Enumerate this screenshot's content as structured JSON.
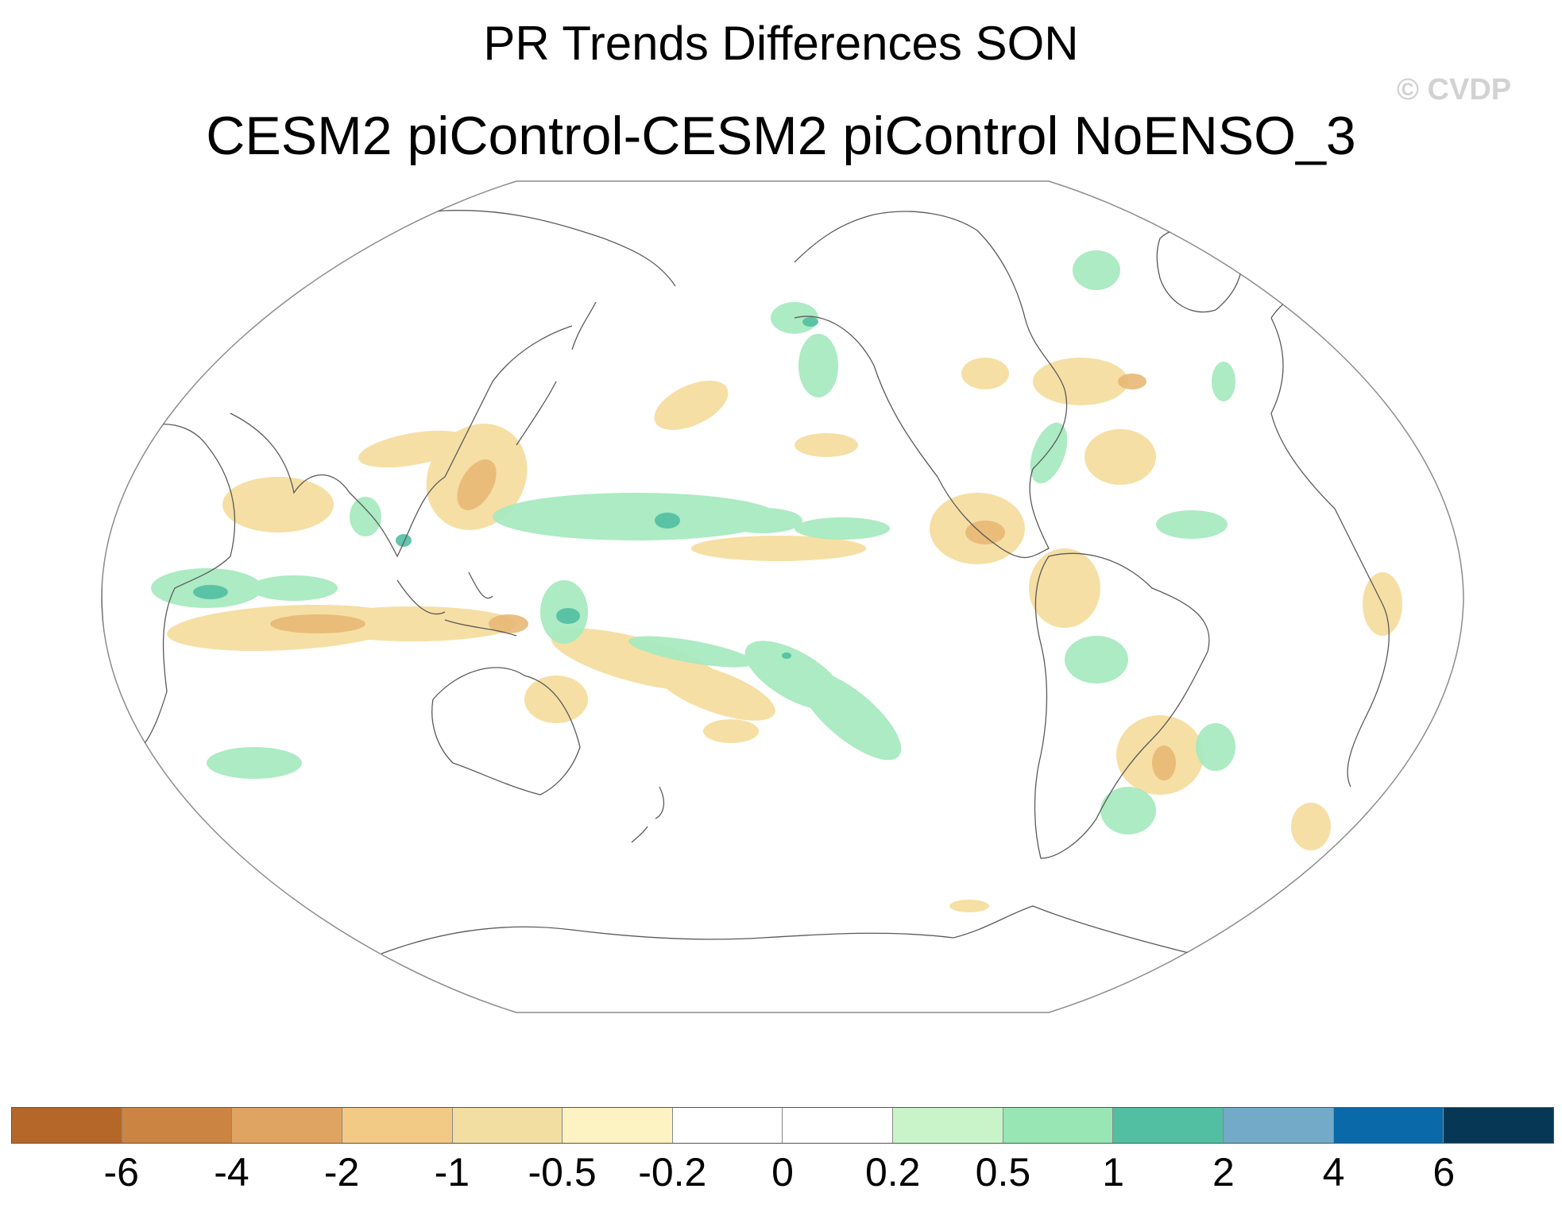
{
  "title": "PR Trends Differences SON",
  "subtitle": "CESM2 piControl-CESM2 piControl NoENSO_3",
  "watermark": "© CVDP",
  "colorbar": {
    "colors": [
      "#b5672a",
      "#cc8442",
      "#dfa462",
      "#f3c986",
      "#f3dea1",
      "#fdf2c1",
      "#ffffff",
      "#ffffff",
      "#c9f4c9",
      "#99e6b5",
      "#52bfa2",
      "#73aac8",
      "#0a69a8",
      "#063755"
    ],
    "labels": [
      "-6",
      "-4",
      "-2",
      "-1",
      "-0.5",
      "-0.2",
      "0",
      "0.2",
      "0.5",
      "1",
      "2",
      "4",
      "6"
    ]
  },
  "legend_colors": {
    "negative": "#f3d690",
    "positive": "#a8eac0",
    "strong_positive": "#52bfa2",
    "strong_negative": "#dfa462"
  }
}
